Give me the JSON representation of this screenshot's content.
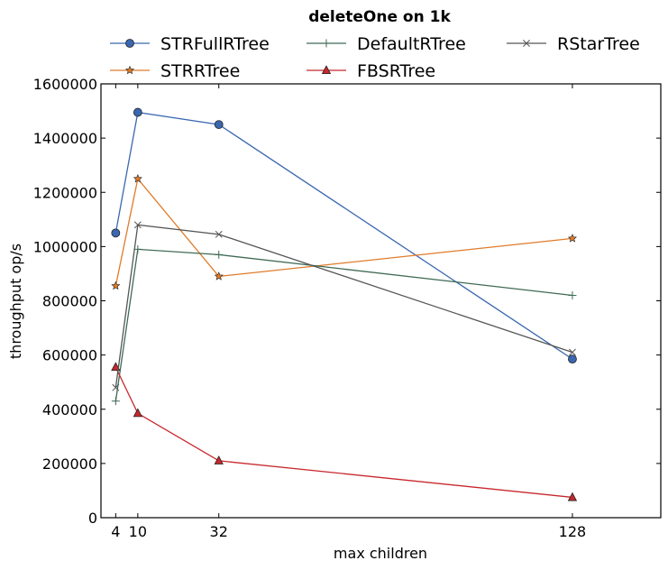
{
  "chart_data": {
    "type": "line",
    "title": "deleteOne on 1k",
    "xlabel": "max children",
    "ylabel": "throughput op/s",
    "x": [
      4,
      10,
      32,
      128
    ],
    "xticks": [
      4,
      10,
      32,
      128
    ],
    "xlim": [
      0,
      152
    ],
    "ylim": [
      0,
      1600000
    ],
    "yticks": [
      0,
      200000,
      400000,
      600000,
      800000,
      1000000,
      1200000,
      1400000,
      1600000
    ],
    "legend_position": "top, above plot, 3 columns",
    "series": [
      {
        "name": "STRFullRTree",
        "color": "#3a67b0",
        "marker": "circle",
        "values": [
          1050000,
          1495000,
          1450000,
          585000
        ]
      },
      {
        "name": "STRRTree",
        "color": "#e07b2a",
        "marker": "star",
        "values": [
          855000,
          1250000,
          890000,
          1030000
        ]
      },
      {
        "name": "DefaultRTree",
        "color": "#3f6a55",
        "marker": "plus",
        "values": [
          430000,
          990000,
          970000,
          820000
        ]
      },
      {
        "name": "FBSRTree",
        "color": "#c8282d",
        "marker": "triangle",
        "values": [
          555000,
          385000,
          210000,
          75000
        ]
      },
      {
        "name": "RStarTree",
        "color": "#555555",
        "marker": "x",
        "values": [
          480000,
          1080000,
          1045000,
          610000
        ]
      }
    ]
  }
}
